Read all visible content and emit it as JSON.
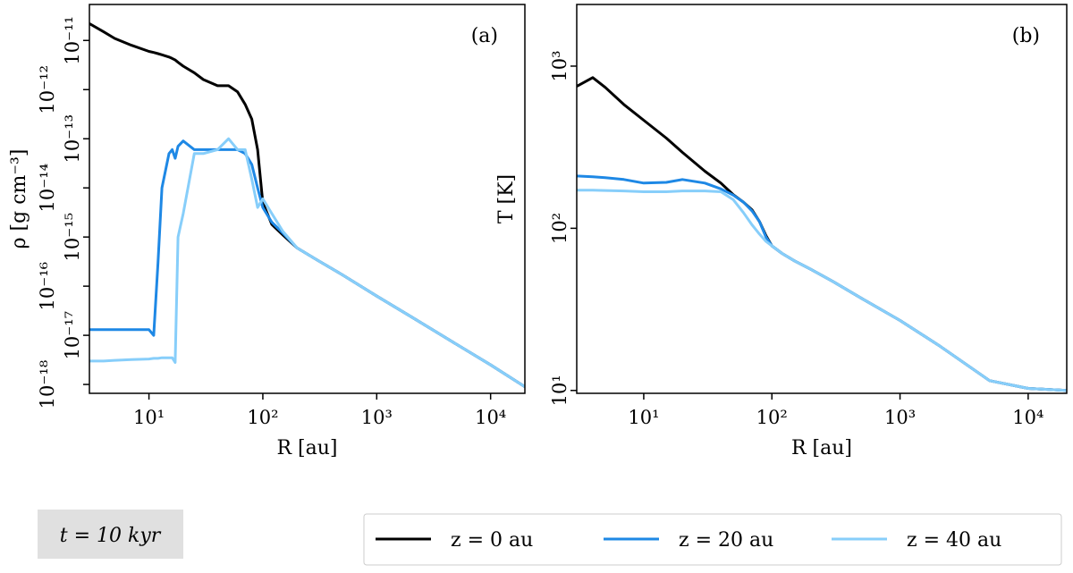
{
  "chart_data": [
    {
      "type": "line",
      "annotation": "(a)",
      "xlabel": "R [au]",
      "ylabel": "ρ [g cm⁻³]",
      "xlog": true,
      "ylog": true,
      "xlim": [
        3,
        20000
      ],
      "ylim": [
        6.6e-19,
        5.4e-11
      ],
      "xticks": [
        {
          "value": 10,
          "label": "10¹"
        },
        {
          "value": 100,
          "label": "10²"
        },
        {
          "value": 1000,
          "label": "10³"
        },
        {
          "value": 10000,
          "label": "10⁴"
        }
      ],
      "yticks": [
        {
          "value": 1e-11,
          "label": "10⁻¹¹"
        },
        {
          "value": 1e-12,
          "label": "10⁻¹²"
        },
        {
          "value": 1e-13,
          "label": "10⁻¹³"
        },
        {
          "value": 1e-14,
          "label": "10⁻¹⁴"
        },
        {
          "value": 1e-15,
          "label": "10⁻¹⁵"
        },
        {
          "value": 1e-16,
          "label": "10⁻¹⁶"
        },
        {
          "value": 1e-17,
          "label": "10⁻¹⁷"
        },
        {
          "value": 1e-18,
          "label": "10⁻¹⁸"
        }
      ],
      "x": [
        3,
        4,
        5,
        7,
        10,
        11,
        12,
        13,
        15,
        16,
        17,
        18,
        20,
        25,
        30,
        40,
        50,
        60,
        70,
        80,
        90,
        100,
        120,
        150,
        200,
        300,
        500,
        1000,
        2000,
        5000,
        10000,
        20000
      ],
      "series": [
        {
          "name": "z = 0 au",
          "color": "#000000",
          "values": [
            2.2e-11,
            1.5e-11,
            1.1e-11,
            8e-12,
            6e-12,
            5.7e-12,
            5.4e-12,
            5.1e-12,
            4.6e-12,
            4.3e-12,
            4e-12,
            3.6e-12,
            3e-12,
            2.2e-12,
            1.6e-12,
            1.2e-12,
            1.2e-12,
            9e-13,
            5e-13,
            2.5e-13,
            6e-14,
            5e-15,
            1.8e-15,
            1.1e-15,
            6e-16,
            3.4e-16,
            1.7e-16,
            6.3e-17,
            2.4e-17,
            6.6e-18,
            2.5e-18,
            9e-19
          ]
        },
        {
          "name": "z = 20 au",
          "color": "#1e88e5",
          "values": [
            1.3e-17,
            1.3e-17,
            1.3e-17,
            1.3e-17,
            1.3e-17,
            1e-17,
            3e-16,
            1e-14,
            5e-14,
            6e-14,
            4e-14,
            7e-14,
            9e-14,
            6e-14,
            6e-14,
            6e-14,
            6e-14,
            6e-14,
            5e-14,
            3e-14,
            1e-14,
            4e-15,
            2e-15,
            1.2e-15,
            6e-16,
            3.4e-16,
            1.7e-16,
            6.3e-17,
            2.4e-17,
            6.6e-18,
            2.5e-18,
            9e-19
          ]
        },
        {
          "name": "z = 40 au",
          "color": "#87cefa",
          "values": [
            3e-18,
            3e-18,
            3.1e-18,
            3.2e-18,
            3.3e-18,
            3.4e-18,
            3.4e-18,
            3.5e-18,
            3.5e-18,
            3.5e-18,
            2.8e-18,
            1e-15,
            3e-15,
            5e-14,
            5e-14,
            6e-14,
            1e-13,
            6e-14,
            6e-14,
            1.5e-14,
            4e-15,
            6e-15,
            3e-15,
            1.3e-15,
            6e-16,
            3.4e-16,
            1.7e-16,
            6.3e-17,
            2.4e-17,
            6.6e-18,
            2.5e-18,
            9e-19
          ]
        }
      ]
    },
    {
      "type": "line",
      "annotation": "(b)",
      "xlabel": "R [au]",
      "ylabel": "T [K]",
      "xlog": true,
      "ylog": true,
      "xlim": [
        3,
        20000
      ],
      "ylim": [
        9.6,
        2400
      ],
      "xticks": [
        {
          "value": 10,
          "label": "10¹"
        },
        {
          "value": 100,
          "label": "10²"
        },
        {
          "value": 1000,
          "label": "10³"
        },
        {
          "value": 10000,
          "label": "10⁴"
        }
      ],
      "yticks": [
        {
          "value": 10,
          "label": "10¹"
        },
        {
          "value": 100,
          "label": "10²"
        },
        {
          "value": 1000,
          "label": "10³"
        }
      ],
      "x": [
        3,
        4,
        5,
        7,
        10,
        15,
        20,
        30,
        40,
        50,
        60,
        70,
        80,
        90,
        100,
        120,
        150,
        200,
        300,
        500,
        1000,
        2000,
        5000,
        10000,
        20000
      ],
      "series": [
        {
          "color": "#000000",
          "values": [
            750,
            850,
            740,
            580,
            464,
            360,
            294,
            225,
            190,
            161,
            145,
            130,
            110,
            90,
            78,
            70,
            63,
            56,
            47,
            37,
            27,
            19,
            11.5,
            10.3,
            10
          ]
        },
        {
          "color": "#1e88e5",
          "values": [
            210,
            208,
            205,
            200,
            190,
            192,
            200,
            190,
            175,
            160,
            145,
            128,
            110,
            88,
            78,
            70,
            63,
            56,
            47,
            37,
            27,
            19,
            11.5,
            10.3,
            10
          ]
        },
        {
          "color": "#87cefa",
          "values": [
            172,
            172,
            171,
            170,
            168,
            168,
            170,
            170,
            168,
            150,
            125,
            105,
            92,
            83,
            78,
            70,
            63,
            56,
            47,
            37,
            27,
            19,
            11.5,
            10.3,
            10
          ]
        }
      ]
    }
  ],
  "time_label": "t = 10 kyr"
}
